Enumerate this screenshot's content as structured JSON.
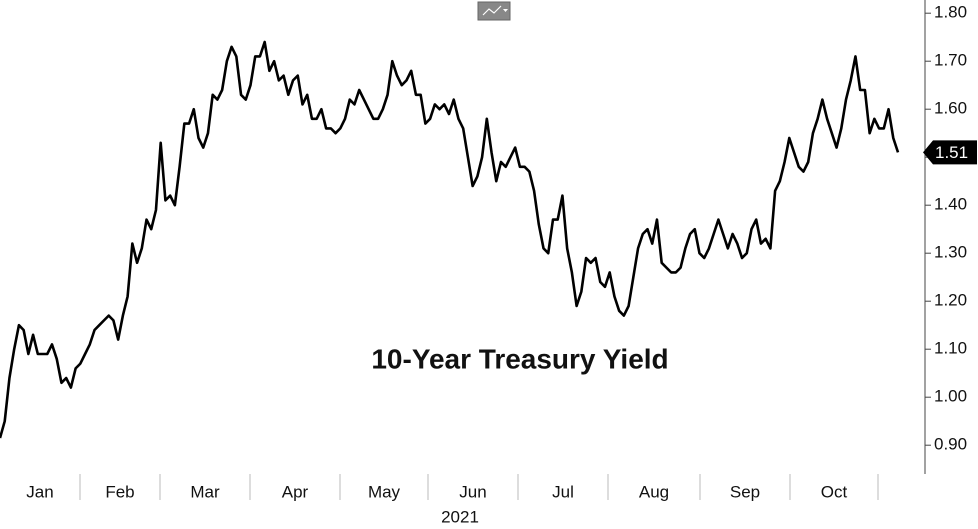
{
  "chart_data": {
    "type": "line",
    "title": "10-Year Treasury Yield",
    "x_tick_labels": [
      "Jan",
      "Feb",
      "Mar",
      "Apr",
      "May",
      "Jun",
      "Jul",
      "Aug",
      "Sep",
      "Oct"
    ],
    "x_axis_label": "2021",
    "ylim": [
      0.84,
      1.83
    ],
    "yticks": [
      {
        "value": 0.9,
        "label": "0.90"
      },
      {
        "value": 1.0,
        "label": "1.00"
      },
      {
        "value": 1.1,
        "label": "1.10"
      },
      {
        "value": 1.2,
        "label": "1.20"
      },
      {
        "value": 1.3,
        "label": "1.30"
      },
      {
        "value": 1.4,
        "label": "1.40"
      },
      {
        "value": 1.5,
        "label": "1.50"
      },
      {
        "value": 1.6,
        "label": "1.60"
      },
      {
        "value": 1.7,
        "label": "1.70"
      },
      {
        "value": 1.8,
        "label": "1.80"
      }
    ],
    "series": [
      {
        "name": "10-Year Treasury Yield",
        "color": "#000000",
        "values": [
          0.915,
          0.95,
          1.04,
          1.1,
          1.15,
          1.14,
          1.09,
          1.13,
          1.09,
          1.09,
          1.09,
          1.11,
          1.08,
          1.03,
          1.04,
          1.02,
          1.06,
          1.07,
          1.09,
          1.11,
          1.14,
          1.15,
          1.16,
          1.17,
          1.16,
          1.12,
          1.17,
          1.21,
          1.32,
          1.28,
          1.31,
          1.37,
          1.35,
          1.39,
          1.53,
          1.41,
          1.42,
          1.4,
          1.48,
          1.57,
          1.57,
          1.6,
          1.54,
          1.52,
          1.55,
          1.63,
          1.62,
          1.64,
          1.7,
          1.73,
          1.71,
          1.63,
          1.62,
          1.65,
          1.71,
          1.71,
          1.74,
          1.68,
          1.7,
          1.66,
          1.67,
          1.63,
          1.66,
          1.67,
          1.61,
          1.63,
          1.58,
          1.58,
          1.6,
          1.56,
          1.56,
          1.55,
          1.56,
          1.58,
          1.62,
          1.61,
          1.64,
          1.62,
          1.6,
          1.58,
          1.58,
          1.6,
          1.63,
          1.7,
          1.67,
          1.65,
          1.66,
          1.68,
          1.63,
          1.63,
          1.57,
          1.58,
          1.61,
          1.6,
          1.61,
          1.59,
          1.62,
          1.58,
          1.56,
          1.5,
          1.44,
          1.46,
          1.5,
          1.58,
          1.51,
          1.45,
          1.49,
          1.48,
          1.5,
          1.52,
          1.48,
          1.48,
          1.47,
          1.43,
          1.36,
          1.31,
          1.3,
          1.37,
          1.37,
          1.42,
          1.31,
          1.26,
          1.19,
          1.22,
          1.29,
          1.28,
          1.29,
          1.24,
          1.23,
          1.26,
          1.21,
          1.18,
          1.17,
          1.19,
          1.25,
          1.31,
          1.34,
          1.35,
          1.32,
          1.37,
          1.28,
          1.27,
          1.26,
          1.26,
          1.27,
          1.31,
          1.34,
          1.35,
          1.3,
          1.29,
          1.31,
          1.34,
          1.37,
          1.34,
          1.31,
          1.34,
          1.32,
          1.29,
          1.3,
          1.35,
          1.37,
          1.32,
          1.33,
          1.31,
          1.43,
          1.45,
          1.49,
          1.54,
          1.51,
          1.48,
          1.47,
          1.49,
          1.55,
          1.58,
          1.62,
          1.58,
          1.55,
          1.52,
          1.56,
          1.62,
          1.66,
          1.71,
          1.64,
          1.64,
          1.55,
          1.58,
          1.56,
          1.56,
          1.6,
          1.54,
          1.51
        ]
      }
    ]
  }
}
